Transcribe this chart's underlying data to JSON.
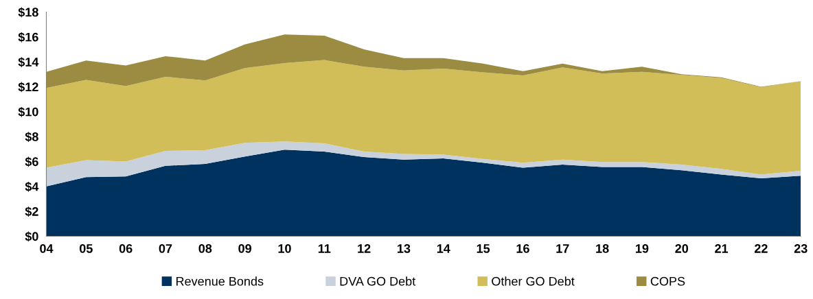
{
  "chart_data": {
    "type": "area",
    "stacked": true,
    "categories": [
      "04",
      "05",
      "06",
      "07",
      "08",
      "09",
      "10",
      "11",
      "12",
      "13",
      "14",
      "15",
      "16",
      "17",
      "18",
      "19",
      "20",
      "21",
      "22",
      "23"
    ],
    "series": [
      {
        "name": "Revenue Bonds",
        "color": "#00325f",
        "values": [
          4.0,
          4.75,
          4.8,
          5.65,
          5.8,
          6.4,
          6.95,
          6.8,
          6.35,
          6.15,
          6.25,
          5.9,
          5.5,
          5.75,
          5.55,
          5.55,
          5.3,
          4.95,
          4.65,
          4.85
        ]
      },
      {
        "name": "DVA GO Debt",
        "color": "#c9d1dc",
        "values": [
          1.5,
          1.35,
          1.2,
          1.2,
          1.1,
          1.1,
          0.65,
          0.65,
          0.45,
          0.45,
          0.3,
          0.3,
          0.4,
          0.4,
          0.4,
          0.4,
          0.45,
          0.45,
          0.3,
          0.4
        ]
      },
      {
        "name": "Other GO Debt",
        "color": "#d2be58",
        "values": [
          6.4,
          6.45,
          6.05,
          5.95,
          5.6,
          6.0,
          6.3,
          6.7,
          6.8,
          6.7,
          6.9,
          6.95,
          7.0,
          7.4,
          7.1,
          7.25,
          7.2,
          7.3,
          7.0,
          7.2
        ]
      },
      {
        "name": "COPS",
        "color": "#9c8c42",
        "values": [
          1.3,
          1.55,
          1.65,
          1.65,
          1.6,
          1.9,
          2.3,
          1.95,
          1.4,
          1.0,
          0.85,
          0.7,
          0.35,
          0.3,
          0.2,
          0.4,
          0.05,
          0.05,
          0.05,
          0.0
        ]
      }
    ],
    "ylim": [
      0,
      18
    ],
    "yticks": [
      {
        "value": 0,
        "label": "$0"
      },
      {
        "value": 2,
        "label": "$2"
      },
      {
        "value": 4,
        "label": "$4"
      },
      {
        "value": 6,
        "label": "$6"
      },
      {
        "value": 8,
        "label": "$8"
      },
      {
        "value": 10,
        "label": "$10"
      },
      {
        "value": 12,
        "label": "$12"
      },
      {
        "value": 14,
        "label": "$14"
      },
      {
        "value": 16,
        "label": "$16"
      },
      {
        "value": 18,
        "label": "$18"
      }
    ],
    "grid": false,
    "legend": "bottom"
  }
}
